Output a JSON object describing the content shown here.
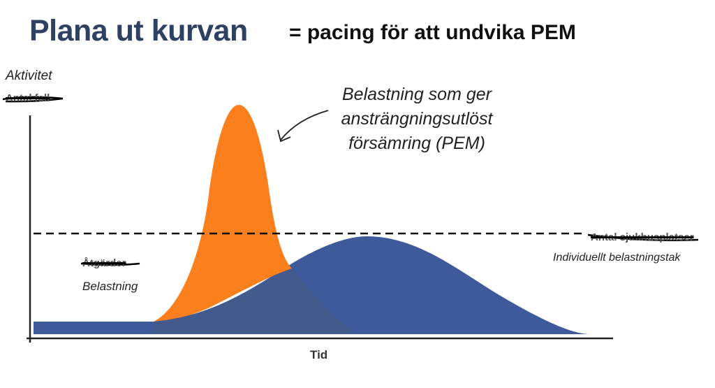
{
  "title": "Plana ut kurvan",
  "subtitle": "= pacing för att undvika PEM",
  "y_axis": {
    "label": "Aktivitet",
    "struck_label": "Antal fall"
  },
  "x_axis": {
    "label": "Tid"
  },
  "annotations": {
    "pem_lines": [
      "Belastning som ger",
      "ansträngningsutlöst",
      "försämring (PEM)"
    ],
    "ceiling_struck": "Antal sjukhusplatser",
    "ceiling_label": "Individuellt belastningstak",
    "load_struck": "Åtgärder",
    "load_label": "Belastning"
  },
  "colors": {
    "peak_curve": "#fb7f1d",
    "flat_curve": "#3e5a9a",
    "overlap": "#435a8c",
    "title": "#2f4163"
  }
}
